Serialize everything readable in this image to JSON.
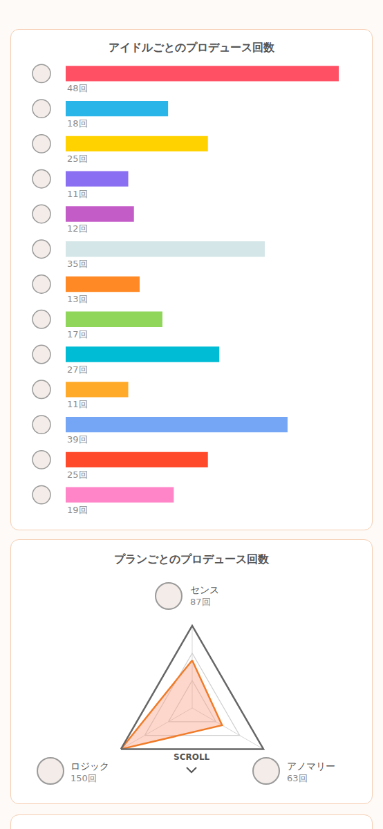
{
  "chart_data": [
    {
      "type": "bar",
      "title": "アイドルごとのプロデュース回数",
      "orientation": "horizontal",
      "categories": [
        null,
        null,
        null,
        null,
        null,
        null,
        null,
        null,
        null,
        null,
        null,
        null,
        null
      ],
      "values": [
        48,
        18,
        25,
        11,
        12,
        35,
        13,
        17,
        27,
        11,
        39,
        25,
        19
      ],
      "value_labels": [
        "48回",
        "18回",
        "25回",
        "11回",
        "12回",
        "35回",
        "13回",
        "17回",
        "27回",
        "11回",
        "39回",
        "25回",
        "19回"
      ],
      "colors": [
        "#ff5064",
        "#29b5e8",
        "#ffd200",
        "#8b6ff2",
        "#c45cc8",
        "#d5e6e8",
        "#ff8a25",
        "#8fd65a",
        "#00bcd4",
        "#ffaa28",
        "#74a6f5",
        "#ff4b2b",
        "#ff85c8"
      ],
      "xlim": [
        0,
        48
      ],
      "data_labels": true,
      "tick_labels": false,
      "grid": false
    },
    {
      "type": "radar",
      "title": "プランごとのプロデュース回数",
      "categories": [
        "センス",
        "アノマリー",
        "ロジック"
      ],
      "values": [
        87,
        63,
        150
      ],
      "value_labels": [
        "87回",
        "63回",
        "150回"
      ],
      "color": "#f07c2a",
      "ylim": [
        0,
        150
      ],
      "yticks": [
        0,
        50,
        100,
        150
      ],
      "grid": true,
      "data_labels": true,
      "tick_labels": false,
      "annotations": [
        "SCROLL"
      ]
    }
  ]
}
